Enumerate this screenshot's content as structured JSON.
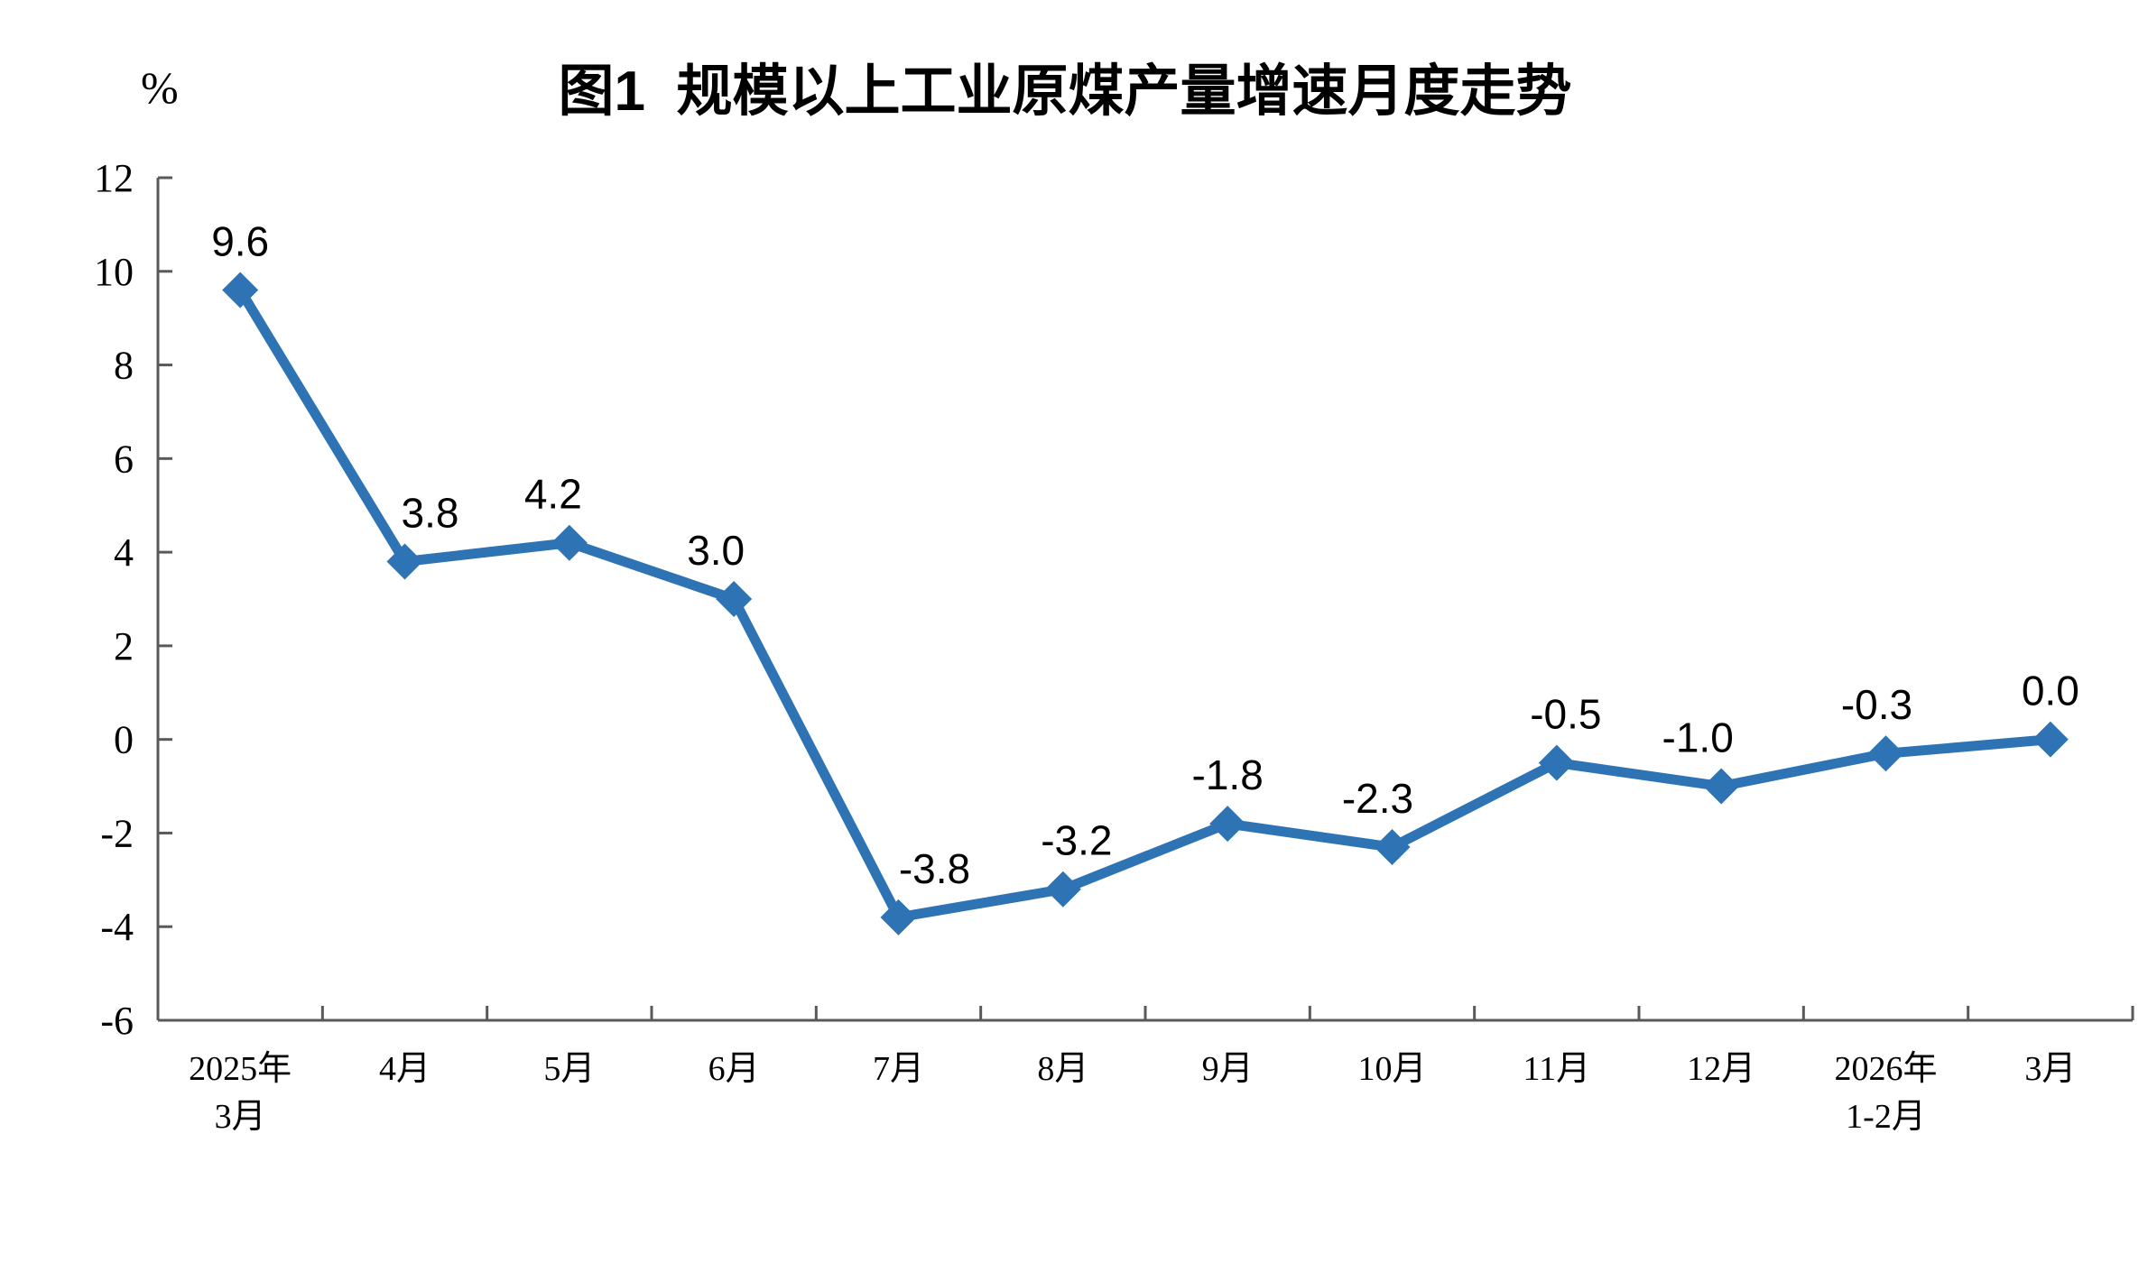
{
  "chart_data": {
    "type": "line",
    "title": "图1  规模以上工业原煤产量增速月度走势",
    "ylabel": "%",
    "xlabel": "",
    "categories": [
      "2025年\n3月",
      "4月",
      "5月",
      "6月",
      "7月",
      "8月",
      "9月",
      "10月",
      "11月",
      "12月",
      "2026年\n1-2月",
      "3月"
    ],
    "values": [
      9.6,
      3.8,
      4.2,
      3.0,
      -3.8,
      -3.2,
      -1.8,
      -2.3,
      -0.5,
      -1.0,
      -0.3,
      0.0
    ],
    "data_labels": [
      "9.6",
      "3.8",
      "4.2",
      "3.0",
      "-3.8",
      "-3.2",
      "-1.8",
      "-2.3",
      "-0.5",
      "-1.0",
      "-0.3",
      "0.0"
    ],
    "ylim": [
      -6,
      12
    ],
    "y_ticks": [
      12,
      10,
      8,
      6,
      4,
      2,
      0,
      -2,
      -4,
      -6
    ],
    "grid": false,
    "legend": "none",
    "marker": "diamond",
    "colors": {
      "line": "#2E74B5",
      "text": "#000000",
      "axis": "#595959",
      "background": "#FFFFFF"
    },
    "label_dx": [
      0,
      28,
      -18,
      -20,
      40,
      15,
      0,
      -16,
      10,
      -26,
      -10,
      0
    ]
  }
}
